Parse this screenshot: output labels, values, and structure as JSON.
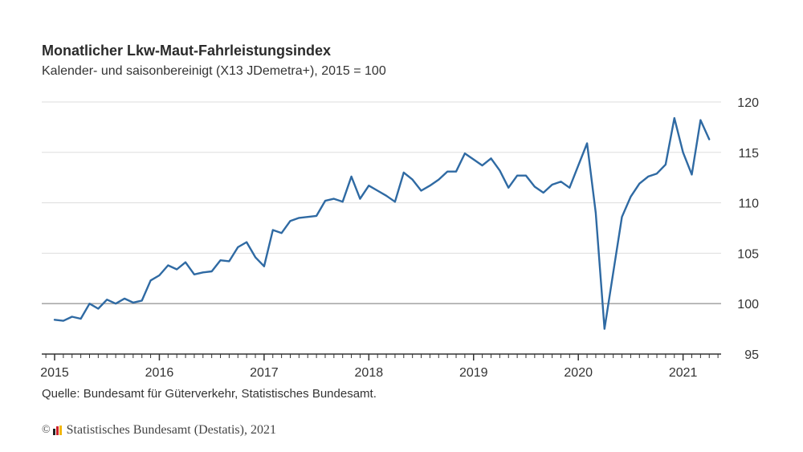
{
  "header": {
    "title": "Monatlicher Lkw-Maut-Fahrleistungsindex",
    "subtitle": "Kalender- und saisonbereinigt (X13 JDemetra+), 2015 = 100"
  },
  "footer": {
    "source": "Quelle: Bundesamt für Güterverkehr, Statistisches Bundesamt.",
    "copyright_symbol": "©",
    "copyright_text": "Statistisches Bundesamt (Destatis), 2021",
    "logo_colors": [
      "#222222",
      "#d0202a",
      "#f2b705"
    ]
  },
  "colors": {
    "line": "#2f6aa3",
    "grid": "#dddddd",
    "baseline_100": "#aaaaaa",
    "axis": "#333333"
  },
  "chart_data": {
    "type": "line",
    "title": "Monatlicher Lkw-Maut-Fahrleistungsindex",
    "subtitle": "Kalender- und saisonbereinigt (X13 JDemetra+), 2015 = 100",
    "xlabel": "",
    "ylabel": "",
    "ylim": [
      95,
      120
    ],
    "yticks": [
      95,
      100,
      105,
      110,
      115,
      120
    ],
    "y_axis_side": "right",
    "xticks": [
      "2015",
      "2016",
      "2017",
      "2018",
      "2019",
      "2020",
      "2021"
    ],
    "x_start": "2015-01",
    "x_end_axis": "2021-05",
    "grid": true,
    "legend": "none",
    "series": [
      {
        "name": "Lkw-Maut-Fahrleistungsindex",
        "x": [
          "2015-01",
          "2015-02",
          "2015-03",
          "2015-04",
          "2015-05",
          "2015-06",
          "2015-07",
          "2015-08",
          "2015-09",
          "2015-10",
          "2015-11",
          "2015-12",
          "2016-01",
          "2016-02",
          "2016-03",
          "2016-04",
          "2016-05",
          "2016-06",
          "2016-07",
          "2016-08",
          "2016-09",
          "2016-10",
          "2016-11",
          "2016-12",
          "2017-01",
          "2017-02",
          "2017-03",
          "2017-04",
          "2017-05",
          "2017-06",
          "2017-07",
          "2017-08",
          "2017-09",
          "2017-10",
          "2017-11",
          "2017-12",
          "2018-01",
          "2018-02",
          "2018-03",
          "2018-04",
          "2018-05",
          "2018-06",
          "2018-07",
          "2018-08",
          "2018-09",
          "2018-10",
          "2018-11",
          "2018-12",
          "2019-01",
          "2019-02",
          "2019-03",
          "2019-04",
          "2019-05",
          "2019-06",
          "2019-07",
          "2019-08",
          "2019-09",
          "2019-10",
          "2019-11",
          "2019-12",
          "2020-01",
          "2020-02",
          "2020-03",
          "2020-04",
          "2020-05",
          "2020-06",
          "2020-07",
          "2020-08",
          "2020-09",
          "2020-10",
          "2020-11",
          "2020-12",
          "2021-01",
          "2021-02",
          "2021-03",
          "2021-04"
        ],
        "values": [
          98.4,
          98.3,
          98.7,
          98.5,
          100.0,
          99.5,
          100.4,
          100.0,
          100.5,
          100.1,
          100.3,
          102.3,
          102.8,
          103.8,
          103.4,
          104.1,
          102.9,
          103.1,
          103.2,
          104.3,
          104.2,
          105.6,
          106.1,
          104.6,
          103.7,
          107.3,
          107.0,
          108.2,
          108.5,
          108.6,
          108.7,
          110.2,
          110.4,
          110.1,
          112.6,
          110.4,
          111.7,
          111.2,
          110.7,
          110.1,
          113.0,
          112.3,
          111.2,
          111.7,
          112.3,
          113.1,
          113.1,
          114.9,
          114.3,
          113.7,
          114.4,
          113.2,
          111.5,
          112.7,
          112.7,
          111.6,
          111.0,
          111.8,
          112.1,
          111.5,
          113.7,
          115.9,
          109.0,
          97.5,
          103.1,
          108.6,
          110.6,
          111.9,
          112.6,
          112.9,
          113.8,
          118.4,
          115.0,
          112.8,
          118.2,
          116.3
        ]
      }
    ]
  }
}
